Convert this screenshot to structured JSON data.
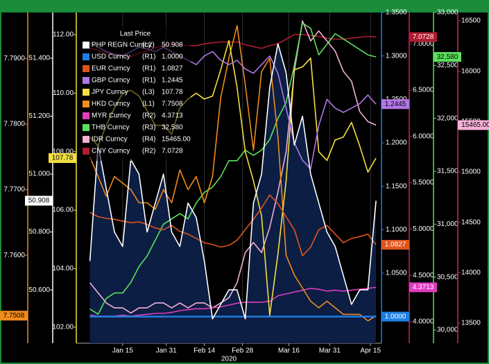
{
  "chart_data": {
    "type": "line",
    "x_label": "2020",
    "legend_title": "Last Price",
    "xlim": [
      "2019-12-29",
      "2020-04-19"
    ],
    "xticks": [
      {
        "value": "2020-01-15",
        "label": "Jan 15"
      },
      {
        "value": "2020-01-31",
        "label": "Jan 31"
      },
      {
        "value": "2020-02-14",
        "label": "Feb 14"
      },
      {
        "value": "2020-02-28",
        "label": "Feb 28"
      },
      {
        "value": "2020-03-16",
        "label": "Mar 16"
      },
      {
        "value": "2020-03-31",
        "label": "Mar 31"
      },
      {
        "value": "2020-04-15",
        "label": "Apr 15"
      }
    ],
    "grid": true,
    "x": [
      "2020-01-03",
      "2020-01-06",
      "2020-01-09",
      "2020-01-12",
      "2020-01-15",
      "2020-01-18",
      "2020-01-21",
      "2020-01-24",
      "2020-01-27",
      "2020-01-30",
      "2020-02-02",
      "2020-02-05",
      "2020-02-08",
      "2020-02-11",
      "2020-02-14",
      "2020-02-17",
      "2020-02-20",
      "2020-02-23",
      "2020-02-26",
      "2020-02-29",
      "2020-03-03",
      "2020-03-06",
      "2020-03-09",
      "2020-03-12",
      "2020-03-15",
      "2020-03-18",
      "2020-03-21",
      "2020-03-24",
      "2020-03-27",
      "2020-03-30",
      "2020-04-02",
      "2020-04-05",
      "2020-04-08",
      "2020-04-11",
      "2020-04-14",
      "2020-04-17"
    ],
    "axes": {
      "(L1)": {
        "color": "#f08c1c",
        "ylim": [
          7.7466,
          7.797
        ],
        "yticks": [
          {
            "value": 7.79,
            "label": "7.7900"
          },
          {
            "value": 7.78,
            "label": "7.7800"
          },
          {
            "value": 7.77,
            "label": "7.7700"
          },
          {
            "value": 7.76,
            "label": "7.7600"
          }
        ]
      },
      "(L2)": {
        "color": "#ffffff",
        "ylim": [
          50.416,
          51.558
        ],
        "yticks": [
          {
            "value": 51.4,
            "label": "51.400"
          },
          {
            "value": 51.2,
            "label": "51.200"
          },
          {
            "value": 51.0,
            "label": "51.000"
          },
          {
            "value": 50.8,
            "label": "50.800"
          },
          {
            "value": 50.6,
            "label": "50.600"
          }
        ]
      },
      "(L3)": {
        "color": "#f5e040",
        "ylim": [
          101.45,
          112.76
        ],
        "yticks": [
          {
            "value": 112,
            "label": "112.00"
          },
          {
            "value": 110,
            "label": "110.00"
          },
          {
            "value": 108,
            "label": "108.00"
          },
          {
            "value": 106,
            "label": "106.00"
          },
          {
            "value": 104,
            "label": "104.00"
          },
          {
            "value": 102,
            "label": "102.00"
          }
        ]
      },
      "(R1)": {
        "color": "#1e7fe0",
        "ylim": [
          0.9694,
          1.35
        ],
        "yticks": [
          {
            "value": 1.35,
            "label": "1.3500"
          },
          {
            "value": 1.3,
            "label": "1.3000"
          },
          {
            "value": 1.25,
            "label": "1.2500"
          },
          {
            "value": 1.2,
            "label": "1.2000"
          },
          {
            "value": 1.15,
            "label": "1.1500"
          },
          {
            "value": 1.1,
            "label": "1.1000"
          },
          {
            "value": 1.05,
            "label": "1.0500"
          }
        ]
      },
      "(R2)": {
        "color": "#d0206a",
        "ylim": [
          3.768,
          7.338
        ],
        "yticks": [
          {
            "value": 7,
            "label": "7.0000"
          },
          {
            "value": 6.5,
            "label": "6.5000"
          },
          {
            "value": 6,
            "label": "6.0000"
          },
          {
            "value": 5.5,
            "label": "5.5000"
          },
          {
            "value": 5,
            "label": "5.0000"
          },
          {
            "value": 4.5,
            "label": "4.5000"
          },
          {
            "value": 4,
            "label": "4.0000"
          }
        ]
      },
      "(R3)": {
        "color": "#5ce05c",
        "ylim": [
          29876,
          33000
        ],
        "yticks": [
          {
            "value": 33000,
            "label": "33,000"
          },
          {
            "value": 32500,
            "label": "32,500"
          },
          {
            "value": 32000,
            "label": "32,000"
          },
          {
            "value": 31500,
            "label": "31,500"
          },
          {
            "value": 31000,
            "label": "31,000"
          },
          {
            "value": 30500,
            "label": "30,500"
          },
          {
            "value": 30000,
            "label": "30,000"
          }
        ]
      },
      "(R4)": {
        "color": "#c03060",
        "ylim": [
          13300,
          16583
        ],
        "yticks": [
          16500,
          16000,
          15500,
          15000,
          14500,
          14000,
          13500
        ]
      }
    },
    "series": [
      {
        "name": "PHP REGN Curncy",
        "axis": "(L2)",
        "color": "#ffffff",
        "area": "#0c1e44",
        "last_label": "50.908",
        "values": [
          50.7,
          51.1,
          50.95,
          50.8,
          50.75,
          51.05,
          51.0,
          50.8,
          50.9,
          51.0,
          50.8,
          50.75,
          50.9,
          50.85,
          50.7,
          50.5,
          50.55,
          50.6,
          50.6,
          50.5,
          50.9,
          51.0,
          51.3,
          51.45,
          51.35,
          51.1,
          51.2,
          51.0,
          50.9,
          50.8,
          50.75,
          50.65,
          50.55,
          50.6,
          50.6,
          50.908
        ]
      },
      {
        "name": "USD Curncy",
        "axis": "(R1)",
        "color": "#1e7fe0",
        "last_label": "1.0000",
        "values": [
          1,
          1,
          1,
          1,
          1,
          1,
          1,
          1,
          1,
          1,
          1,
          1,
          1,
          1,
          1,
          1,
          1,
          1,
          1,
          1,
          1,
          1,
          1,
          1,
          1,
          1,
          1,
          1,
          1,
          1,
          1,
          1,
          1,
          1,
          1,
          1
        ]
      },
      {
        "name": "EUR Curncy",
        "axis": "(R1)",
        "color": "#e0541c",
        "last_label": "1.0827",
        "values": [
          1.12,
          1.115,
          1.113,
          1.112,
          1.11,
          1.108,
          1.109,
          1.106,
          1.102,
          1.1,
          1.105,
          1.098,
          1.095,
          1.09,
          1.085,
          1.083,
          1.08,
          1.082,
          1.088,
          1.1,
          1.112,
          1.125,
          1.14,
          1.13,
          1.115,
          1.1,
          1.07,
          1.08,
          1.1,
          1.105,
          1.095,
          1.085,
          1.09,
          1.092,
          1.095,
          1.0827
        ]
      },
      {
        "name": "GBP Curncy",
        "axis": "(R1)",
        "color": "#b276e6",
        "last_label": "1.2445",
        "values": [
          1.315,
          1.31,
          1.305,
          1.302,
          1.3,
          1.305,
          1.31,
          1.308,
          1.305,
          1.31,
          1.305,
          1.3,
          1.295,
          1.29,
          1.3,
          1.305,
          1.295,
          1.29,
          1.295,
          1.285,
          1.28,
          1.29,
          1.3,
          1.28,
          1.24,
          1.2,
          1.18,
          1.17,
          1.22,
          1.25,
          1.24,
          1.235,
          1.24,
          1.245,
          1.255,
          1.2445
        ]
      },
      {
        "name": "JPY Curncy",
        "axis": "(L3)",
        "color": "#f5e040",
        "last_label": "107.78",
        "values": [
          108.5,
          108.2,
          108.9,
          109.5,
          110.0,
          110.1,
          109.9,
          109.4,
          108.9,
          108.9,
          108.6,
          109.5,
          109.8,
          110.0,
          109.8,
          109.9,
          110.8,
          111.8,
          110.2,
          108.0,
          107.0,
          105.8,
          102.4,
          104.5,
          107.0,
          110.8,
          110.9,
          111.2,
          108.0,
          107.7,
          108.4,
          108.5,
          109.0,
          108.2,
          107.3,
          107.78
        ]
      },
      {
        "name": "HKD Curncy",
        "axis": "(L1)",
        "color": "#f08c1c",
        "last_label": "7.7508",
        "values": [
          7.775,
          7.772,
          7.769,
          7.772,
          7.771,
          7.77,
          7.768,
          7.768,
          7.767,
          7.77,
          7.768,
          7.773,
          7.77,
          7.772,
          7.768,
          7.772,
          7.784,
          7.79,
          7.795,
          7.786,
          7.776,
          7.788,
          7.79,
          7.778,
          7.76,
          7.757,
          7.755,
          7.753,
          7.752,
          7.753,
          7.752,
          7.751,
          7.751,
          7.751,
          7.75,
          7.7508
        ]
      },
      {
        "name": "MYR Curncy",
        "axis": "(R2)",
        "color": "#e03cc0",
        "last_label": "4.3713",
        "values": [
          4.07,
          4.06,
          4.06,
          4.06,
          4.07,
          4.06,
          4.07,
          4.08,
          4.09,
          4.09,
          4.1,
          4.12,
          4.13,
          4.14,
          4.14,
          4.15,
          4.16,
          4.18,
          4.2,
          4.21,
          4.21,
          4.21,
          4.22,
          4.28,
          4.3,
          4.32,
          4.34,
          4.36,
          4.35,
          4.33,
          4.34,
          4.33,
          4.34,
          4.35,
          4.36,
          4.3713
        ]
      },
      {
        "name": "THB Curncy",
        "axis": "(R3)",
        "color": "#5ce05c",
        "last_label": "32,580",
        "values": [
          30200,
          30150,
          30300,
          30350,
          30350,
          30450,
          30600,
          30700,
          30850,
          31000,
          31050,
          31100,
          31050,
          31200,
          31300,
          31350,
          31450,
          31600,
          31600,
          31700,
          31650,
          31700,
          31800,
          32000,
          32150,
          32500,
          32900,
          32850,
          32600,
          32700,
          32800,
          32750,
          32700,
          32650,
          32600,
          32580
        ]
      },
      {
        "name": "IDR Curncy",
        "axis": "(R4)",
        "color": "#f5b0d8",
        "last_label": "15465.00",
        "values": [
          13900,
          13800,
          13700,
          13650,
          13650,
          13600,
          13650,
          13650,
          13700,
          13700,
          13650,
          13700,
          13650,
          13700,
          13700,
          13650,
          13700,
          13750,
          13900,
          14200,
          14300,
          14200,
          14450,
          14800,
          15200,
          16000,
          16500,
          16300,
          16400,
          16300,
          16200,
          16000,
          15900,
          15600,
          15500,
          15465
        ]
      },
      {
        "name": "CNY Curncy",
        "axis": "(R2)",
        "color": "#b01c30",
        "last_label": "7.0728",
        "values": [
          6.95,
          6.93,
          6.9,
          6.88,
          6.87,
          6.86,
          6.9,
          6.92,
          6.96,
          6.98,
          7.0,
          6.99,
          6.98,
          6.98,
          7.0,
          7.01,
          7.02,
          7.02,
          7.02,
          6.99,
          6.97,
          6.95,
          6.98,
          7.0,
          7.05,
          7.1,
          7.1,
          7.09,
          7.08,
          7.06,
          7.05,
          7.05,
          7.06,
          7.07,
          7.08,
          7.0728
        ]
      }
    ]
  }
}
